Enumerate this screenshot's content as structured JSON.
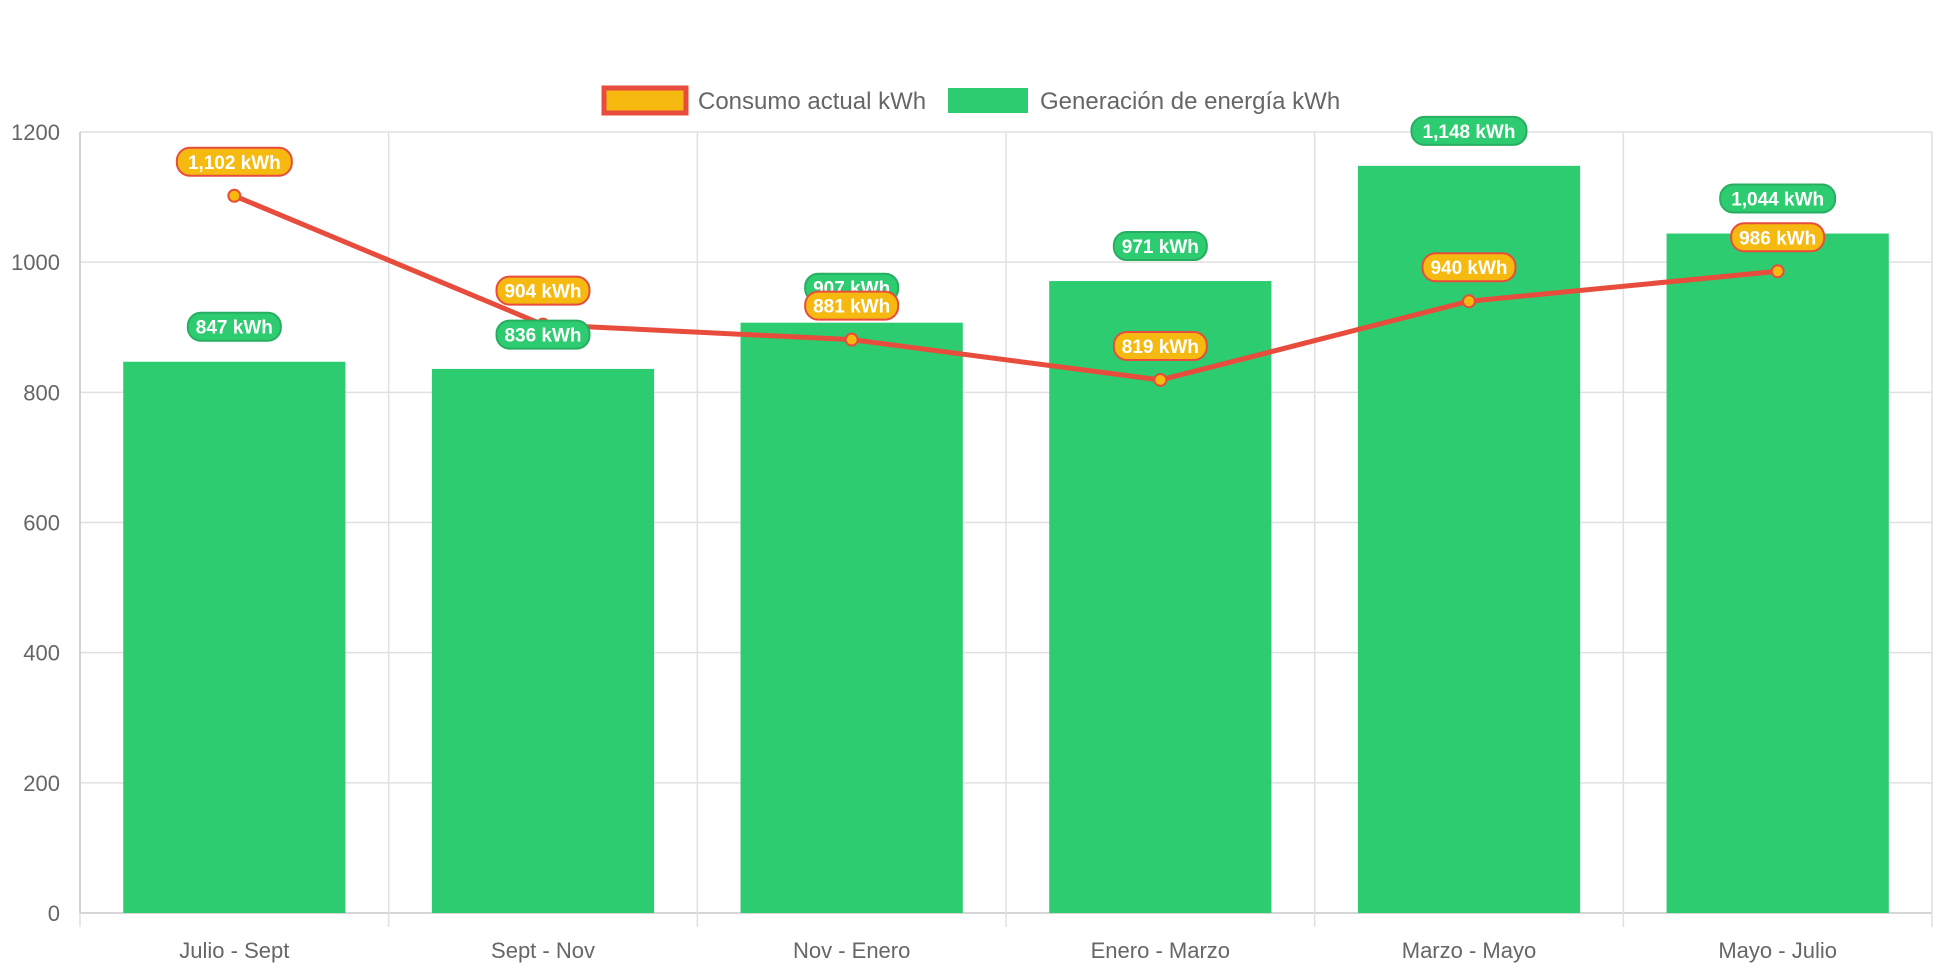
{
  "chart_data": {
    "type": "bar",
    "categories": [
      "Julio - Sept",
      "Sept - Nov",
      "Nov - Enero",
      "Enero - Marzo",
      "Marzo - Mayo",
      "Mayo - Julio"
    ],
    "series": [
      {
        "name": "Consumo actual kWh",
        "type": "line",
        "values": [
          1102,
          904,
          881,
          819,
          940,
          986
        ],
        "labels": [
          "1,102 kWh",
          "904 kWh",
          "881 kWh",
          "819 kWh",
          "940 kWh",
          "986 kWh"
        ],
        "line_color": "#e74c3c",
        "fill_color": "#f5b90f"
      },
      {
        "name": "Generación de energía kWh",
        "type": "bar",
        "values": [
          847,
          836,
          907,
          971,
          1148,
          1044
        ],
        "labels": [
          "847 kWh",
          "836 kWh",
          "907 kWh",
          "971 kWh",
          "1,148 kWh",
          "1,044 kWh"
        ],
        "color": "#2ecc71",
        "border_color": "#27ae60"
      }
    ],
    "y_ticks": [
      "0",
      "200",
      "400",
      "600",
      "800",
      "1000",
      "1200"
    ],
    "ylim": [
      0,
      1200
    ],
    "grid": true,
    "legend": "top-center",
    "title": "",
    "xlabel": "",
    "ylabel": ""
  }
}
